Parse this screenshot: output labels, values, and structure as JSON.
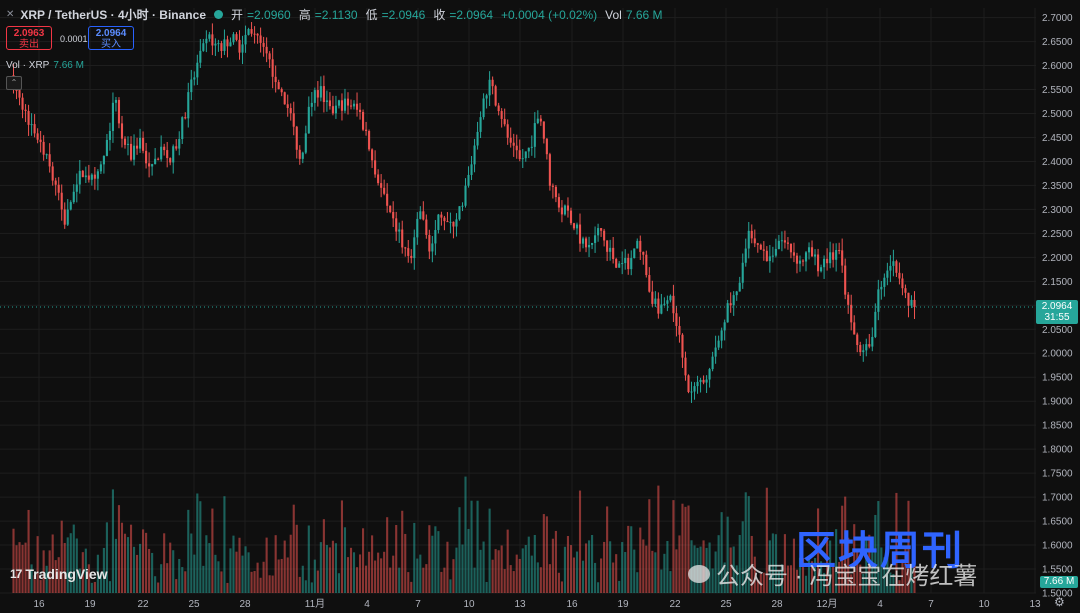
{
  "header": {
    "symbol": "XRP / TetherUS · 4小时 · Binance",
    "open_label": "开",
    "open_value": "=2.0960",
    "high_label": "高",
    "high_value": "=2.1130",
    "low_label": "低",
    "low_value": "=2.0946",
    "close_label": "收",
    "close_value": "=2.0964",
    "change": "+0.0004 (+0.02%)",
    "vol_label": "Vol",
    "vol_value": "7.66 M"
  },
  "trade": {
    "sell_price": "2.0963",
    "sell_label": "卖出",
    "spread": "0.0001",
    "buy_price": "2.0964",
    "buy_label": "买入"
  },
  "volume_legend": {
    "label": "Vol · XRP",
    "value": "7.66 M"
  },
  "last_price": {
    "value": "2.0964",
    "countdown": "31:55"
  },
  "last_volume": "7.66 M",
  "branding": {
    "tradingview": "TradingView",
    "watermark_logo": "区块周刊",
    "watermark_text": "公众号 · 冯宝宝在烤红薯"
  },
  "colors": {
    "up": "#26a69a",
    "down": "#ef5350",
    "background": "#0f0f0f",
    "grid": "#1e1e1e"
  },
  "chart_data": {
    "type": "candlestick",
    "y_ticks": [
      "2.7000",
      "2.6500",
      "2.6000",
      "2.5500",
      "2.5000",
      "2.4500",
      "2.4000",
      "2.3500",
      "2.3000",
      "2.2500",
      "2.2000",
      "2.1500",
      "2.1000",
      "2.0500",
      "2.0000",
      "1.9500",
      "1.9000",
      "1.8500",
      "1.8000",
      "1.7500",
      "1.7000",
      "1.6500",
      "1.6000",
      "1.5500",
      "1.5000"
    ],
    "ylim": [
      1.5,
      2.72
    ],
    "x_ticks": [
      "16",
      "19",
      "22",
      "25",
      "28",
      "11月",
      "4",
      "7",
      "10",
      "13",
      "16",
      "19",
      "22",
      "25",
      "28",
      "12月",
      "4",
      "7",
      "10",
      "13"
    ],
    "price_path": [
      [
        0,
        2.58
      ],
      [
        3,
        2.5
      ],
      [
        6,
        2.44
      ],
      [
        9,
        2.35
      ],
      [
        11,
        2.27
      ],
      [
        13,
        2.36
      ],
      [
        15,
        2.38
      ],
      [
        17,
        2.35
      ],
      [
        19,
        2.42
      ],
      [
        21,
        2.54
      ],
      [
        22,
        2.46
      ],
      [
        24,
        2.41
      ],
      [
        26,
        2.45
      ],
      [
        28,
        2.37
      ],
      [
        30,
        2.43
      ],
      [
        32,
        2.4
      ],
      [
        34,
        2.46
      ],
      [
        36,
        2.55
      ],
      [
        38,
        2.62
      ],
      [
        40,
        2.66
      ],
      [
        42,
        2.63
      ],
      [
        44,
        2.66
      ],
      [
        46,
        2.64
      ],
      [
        48,
        2.68
      ],
      [
        50,
        2.64
      ],
      [
        52,
        2.6
      ],
      [
        54,
        2.55
      ],
      [
        56,
        2.5
      ],
      [
        58,
        2.4
      ],
      [
        60,
        2.52
      ],
      [
        62,
        2.55
      ],
      [
        64,
        2.5
      ],
      [
        66,
        2.52
      ],
      [
        68,
        2.52
      ],
      [
        70,
        2.5
      ],
      [
        72,
        2.42
      ],
      [
        74,
        2.35
      ],
      [
        76,
        2.28
      ],
      [
        78,
        2.25
      ],
      [
        80,
        2.18
      ],
      [
        82,
        2.3
      ],
      [
        84,
        2.21
      ],
      [
        86,
        2.3
      ],
      [
        88,
        2.26
      ],
      [
        90,
        2.3
      ],
      [
        92,
        2.38
      ],
      [
        94,
        2.5
      ],
      [
        96,
        2.56
      ],
      [
        98,
        2.51
      ],
      [
        100,
        2.43
      ],
      [
        102,
        2.4
      ],
      [
        104,
        2.43
      ],
      [
        106,
        2.51
      ],
      [
        108,
        2.36
      ],
      [
        110,
        2.3
      ],
      [
        112,
        2.29
      ],
      [
        114,
        2.24
      ],
      [
        116,
        2.22
      ],
      [
        118,
        2.26
      ],
      [
        120,
        2.21
      ],
      [
        122,
        2.18
      ],
      [
        124,
        2.19
      ],
      [
        126,
        2.23
      ],
      [
        128,
        2.13
      ],
      [
        130,
        2.08
      ],
      [
        132,
        2.13
      ],
      [
        134,
        2.04
      ],
      [
        136,
        1.91
      ],
      [
        138,
        1.94
      ],
      [
        140,
        1.96
      ],
      [
        142,
        2.05
      ],
      [
        144,
        2.1
      ],
      [
        146,
        2.14
      ],
      [
        148,
        2.26
      ],
      [
        150,
        2.22
      ],
      [
        152,
        2.2
      ],
      [
        154,
        2.24
      ],
      [
        156,
        2.22
      ],
      [
        158,
        2.19
      ],
      [
        160,
        2.21
      ],
      [
        162,
        2.18
      ],
      [
        164,
        2.2
      ],
      [
        166,
        2.21
      ],
      [
        168,
        2.07
      ],
      [
        170,
        2.0
      ],
      [
        172,
        2.01
      ],
      [
        174,
        2.14
      ],
      [
        176,
        2.19
      ],
      [
        178,
        2.17
      ],
      [
        180,
        2.1
      ],
      [
        181,
        2.096
      ]
    ]
  }
}
